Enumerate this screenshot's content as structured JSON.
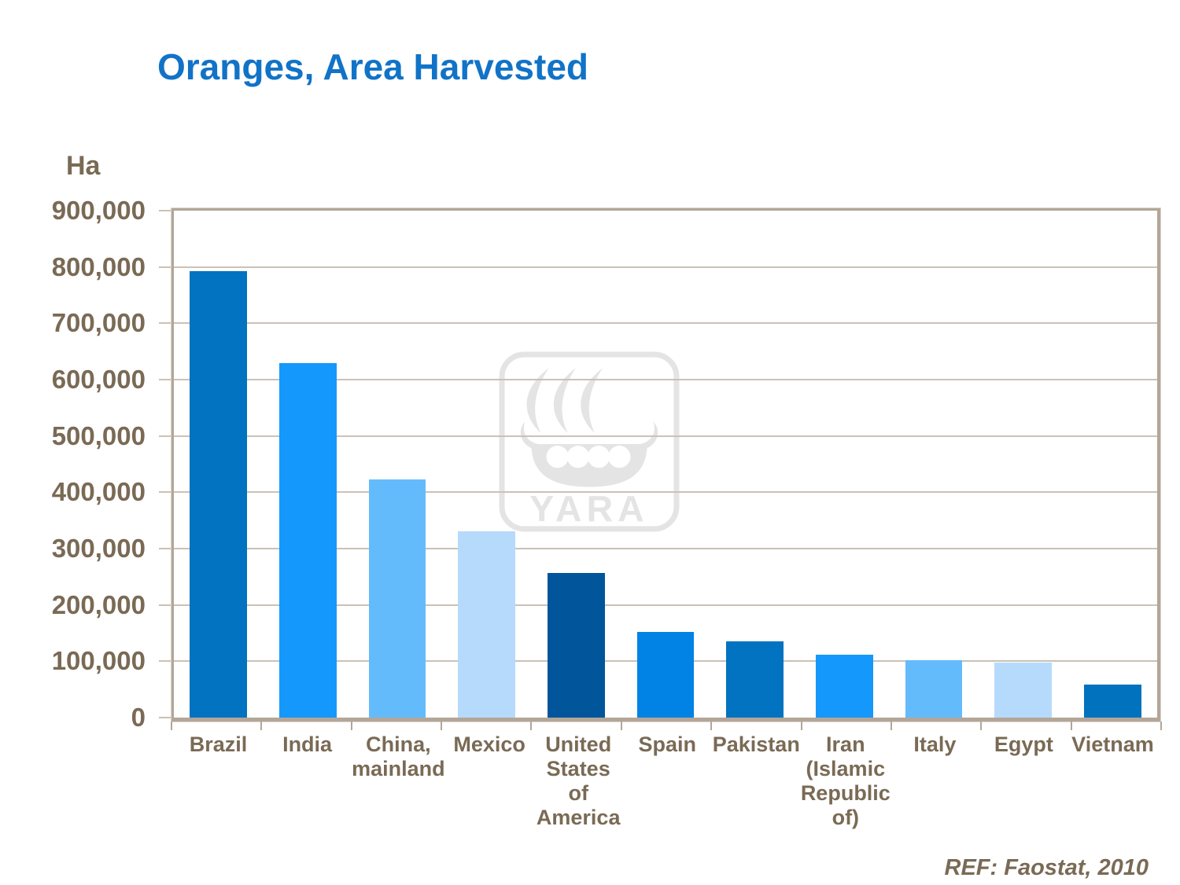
{
  "title": "Oranges, Area Harvested",
  "y_axis_unit": "Ha",
  "watermark_text": "YARA",
  "source_ref": "REF: Faostat, 2010",
  "colors": {
    "title": "#1173C7",
    "axis_text": "#7A6A55",
    "grid": "#CBC1B5",
    "frame": "#B3A698",
    "watermark": "#E4E4E4"
  },
  "chart_data": {
    "type": "bar",
    "title": "Oranges, Area Harvested",
    "xlabel": "",
    "ylabel": "Ha",
    "ylim": [
      0,
      900000
    ],
    "ytick_step": 100000,
    "grid": true,
    "legend": "none",
    "categories": [
      "Brazil",
      "India",
      "China,\nmainland",
      "Mexico",
      "United\nStates of\nAmerica",
      "Spain",
      "Pakistan",
      "Iran\n(Islamic\nRepublic\nof)",
      "Italy",
      "Egypt",
      "Vietnam"
    ],
    "values": [
      792000,
      629000,
      423000,
      331000,
      257000,
      152000,
      135000,
      111000,
      102000,
      98000,
      58000
    ],
    "bar_colors": [
      "#0173C0",
      "#1498FB",
      "#64BBFC",
      "#B6DAFB",
      "#00559B",
      "#0083E5",
      "#0173C0",
      "#1498FB",
      "#64BBFC",
      "#B6DAFB",
      "#0172BE"
    ]
  }
}
